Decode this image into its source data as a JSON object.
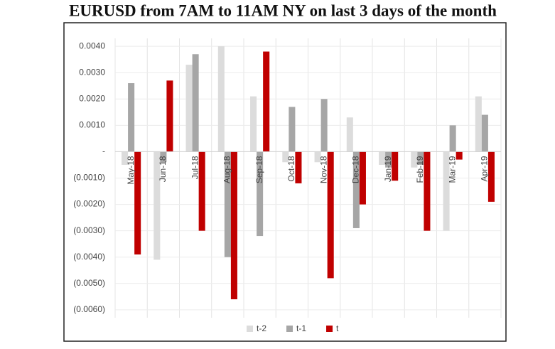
{
  "chart_data": {
    "type": "bar",
    "title": "EURUSD from 7AM to 11AM NY on last 3 days of the month",
    "categories": [
      "May-18",
      "Jun-18",
      "Jul-18",
      "Aug-18",
      "Sep-18",
      "Oct-18",
      "Nov-18",
      "Dec-18",
      "Jan-19",
      "Feb-19",
      "Mar-19",
      "Apr-19"
    ],
    "series": [
      {
        "name": "t-2",
        "color": "#dcdcdc",
        "values": [
          -0.0005,
          -0.0041,
          0.0033,
          0.004,
          0.0021,
          -0.0004,
          -0.0004,
          0.0013,
          -0.0005,
          -0.0006,
          -0.003,
          0.0021
        ]
      },
      {
        "name": "t-1",
        "color": "#a6a6a6",
        "values": [
          0.0026,
          -0.0004,
          0.0037,
          -0.004,
          -0.0032,
          0.0017,
          0.002,
          -0.0029,
          -0.0006,
          -0.0005,
          0.001,
          0.0014
        ]
      },
      {
        "name": "t",
        "color": "#c00000",
        "values": [
          -0.0039,
          0.0027,
          -0.003,
          -0.0056,
          0.0038,
          -0.0012,
          -0.0048,
          -0.002,
          -0.0011,
          -0.003,
          -0.0003,
          -0.0019
        ]
      }
    ],
    "ylim": [
      -0.0063,
      0.0043
    ],
    "yticks": [
      {
        "value": 0.004,
        "label": "0.0040"
      },
      {
        "value": 0.003,
        "label": "0.0030"
      },
      {
        "value": 0.002,
        "label": "0.0020"
      },
      {
        "value": 0.001,
        "label": "0.0010"
      },
      {
        "value": 0,
        "label": "-"
      },
      {
        "value": -0.001,
        "label": "(0.0010)"
      },
      {
        "value": -0.002,
        "label": "(0.0020)"
      },
      {
        "value": -0.003,
        "label": "(0.0030)"
      },
      {
        "value": -0.004,
        "label": "(0.0040)"
      },
      {
        "value": -0.005,
        "label": "(0.0050)"
      },
      {
        "value": -0.006,
        "label": "(0.0060)"
      }
    ],
    "grid": true,
    "legend": "bottom"
  }
}
